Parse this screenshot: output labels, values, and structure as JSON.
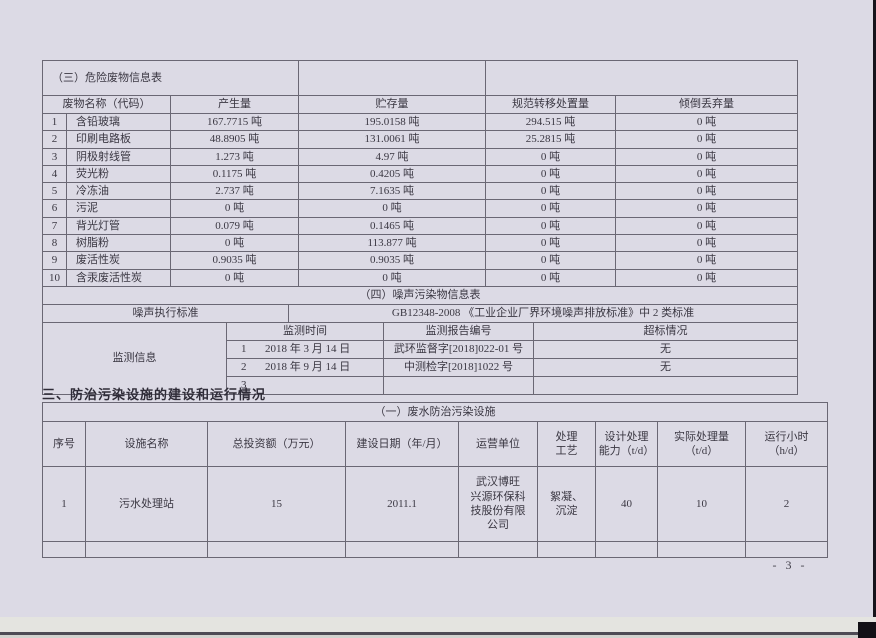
{
  "page": {
    "number_label": "- 3 -"
  },
  "section3_title": "三、防治污染设施的建设和运行情况",
  "hazwaste": {
    "table_title": "（三）危险废物信息表",
    "headers": [
      "废物名称（代码）",
      "产生量",
      "贮存量",
      "规范转移处置量",
      "倾倒丢弃量"
    ],
    "rows": [
      {
        "no": "1",
        "name": "含铅玻璃",
        "values": [
          "167.7715 吨",
          "195.0158 吨",
          "294.515 吨",
          "0 吨"
        ]
      },
      {
        "no": "2",
        "name": "印刷电路板",
        "values": [
          "48.8905 吨",
          "131.0061 吨",
          "25.2815 吨",
          "0 吨"
        ]
      },
      {
        "no": "3",
        "name": "阴极射线管",
        "values": [
          "1.273 吨",
          "4.97 吨",
          "0 吨",
          "0 吨"
        ]
      },
      {
        "no": "4",
        "name": "荧光粉",
        "values": [
          "0.1175 吨",
          "0.4205 吨",
          "0 吨",
          "0 吨"
        ]
      },
      {
        "no": "5",
        "name": "冷冻油",
        "values": [
          "2.737 吨",
          "7.1635 吨",
          "0 吨",
          "0 吨"
        ]
      },
      {
        "no": "6",
        "name": "污泥",
        "values": [
          "0 吨",
          "0 吨",
          "0 吨",
          "0 吨"
        ]
      },
      {
        "no": "7",
        "name": "背光灯管",
        "values": [
          "0.079 吨",
          "0.1465 吨",
          "0 吨",
          "0 吨"
        ]
      },
      {
        "no": "8",
        "name": "树脂粉",
        "values": [
          "0 吨",
          "113.877 吨",
          "0 吨",
          "0 吨"
        ]
      },
      {
        "no": "9",
        "name": "废活性炭",
        "values": [
          "0.9035 吨",
          "0.9035 吨",
          "0 吨",
          "0 吨"
        ]
      },
      {
        "no": "10",
        "name": "含汞废活性炭",
        "values": [
          "0 吨",
          "0 吨",
          "0 吨",
          "0 吨"
        ]
      }
    ]
  },
  "noise": {
    "table_title": "（四）噪声污染物信息表",
    "standard_label": "噪声执行标准",
    "standard_value": "GB12348-2008 《工业企业厂界环境噪声排放标准》中 2 类标准",
    "monitor_label": "监测信息",
    "headers": [
      "监测时间",
      "监测报告编号",
      "超标情况"
    ],
    "rows": [
      {
        "no": "1",
        "time": "2018 年 3 月 14 日",
        "report": "武环监督字[2018]022-01 号",
        "exceed": "无"
      },
      {
        "no": "2",
        "time": "2018 年 9 月 14 日",
        "report": "中测检字[2018]1022 号",
        "exceed": "无"
      },
      {
        "no": "3",
        "time": "",
        "report": "",
        "exceed": ""
      }
    ]
  },
  "facility": {
    "table_title": "（一）废水防治污染设施",
    "headers": [
      "序号",
      "设施名称",
      "总投资额（万元）",
      "建设日期（年/月）",
      "运营单位",
      "处理\n工艺",
      "设计处理\n能力（t/d）",
      "实际处理量\n（t/d）",
      "运行小时\n（h/d）"
    ],
    "rows": [
      {
        "cells": [
          "1",
          "污水处理站",
          "15",
          "2011.1",
          "武汉博旺\n兴源环保科\n技股份有限\n公司",
          "絮凝、\n沉淀",
          "40",
          "10",
          "2"
        ]
      }
    ]
  }
}
